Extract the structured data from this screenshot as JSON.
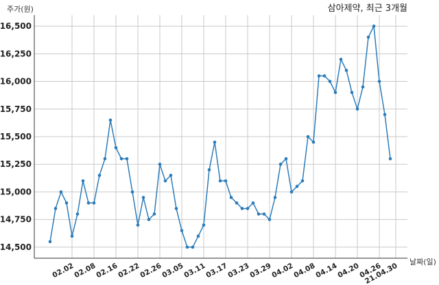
{
  "chart_data": {
    "type": "line",
    "title": "삼아제약, 최근 3개월",
    "ylabel": "주가(원)",
    "xlabel": "날짜(일)",
    "ylim": [
      14400,
      16600
    ],
    "yticks": [
      14500,
      14750,
      15000,
      15250,
      15500,
      15750,
      16000,
      16250,
      16500
    ],
    "ytick_labels": [
      "14,500",
      "14,750",
      "15,000",
      "15,250",
      "15,500",
      "15,750",
      "16,000",
      "16,250",
      "16,500"
    ],
    "xtick_labels": [
      "02.02",
      "02.08",
      "02.16",
      "02.22",
      "02.26",
      "03.05",
      "03.11",
      "03.17",
      "03.23",
      "03.29",
      "04.02",
      "04.08",
      "04.14",
      "04.20",
      "04.26",
      "21.04.30"
    ],
    "xtick_index": [
      4,
      8,
      12,
      16,
      20,
      24,
      28,
      32,
      36,
      40,
      44,
      48,
      52,
      56,
      60,
      63
    ],
    "grid": true,
    "color": "#2b7bb9",
    "values": [
      14550,
      14850,
      15000,
      14900,
      14600,
      14800,
      15100,
      14900,
      14900,
      15150,
      15300,
      15650,
      15400,
      15300,
      15300,
      15000,
      14700,
      14950,
      14750,
      14800,
      15250,
      15100,
      15150,
      14850,
      14650,
      14500,
      14500,
      14600,
      14700,
      15200,
      15450,
      15100,
      15100,
      14950,
      14900,
      14850,
      14850,
      14900,
      14800,
      14800,
      14750,
      14950,
      15250,
      15300,
      15000,
      15050,
      15100,
      15500,
      15450,
      16050,
      16050,
      16000,
      15900,
      16200,
      16100,
      15900,
      15750,
      15950,
      16400,
      16500,
      16000,
      15700,
      15300
    ]
  }
}
